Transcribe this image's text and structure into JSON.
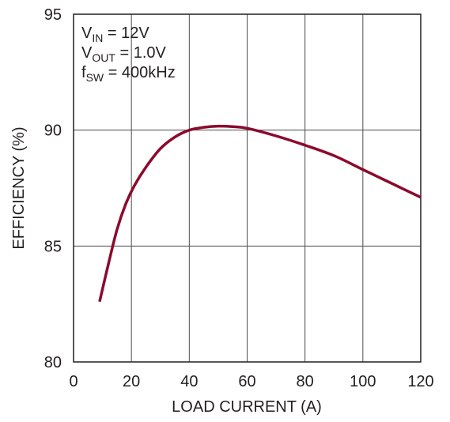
{
  "chart_data": {
    "type": "line",
    "title": "",
    "xlabel": "LOAD CURRENT (A)",
    "ylabel": "EFFICIENCY (%)",
    "xlim": [
      0,
      120
    ],
    "ylim": [
      80,
      95
    ],
    "xticks": [
      0,
      20,
      40,
      60,
      80,
      100,
      120
    ],
    "yticks": [
      80,
      85,
      90,
      95
    ],
    "xtick_labels": [
      "0",
      "20",
      "40",
      "60",
      "80",
      "100",
      "120"
    ],
    "ytick_labels": [
      "80",
      "85",
      "90",
      "95"
    ],
    "grid": true,
    "line_color": "#8b0a2e",
    "annotations": [
      {
        "main": "V",
        "sub": "IN",
        "rest": " = 12V"
      },
      {
        "main": "V",
        "sub": "OUT",
        "rest": " = 1.0V"
      },
      {
        "main": "f",
        "sub": "SW",
        "rest": " = 400kHz"
      }
    ],
    "series": [
      {
        "x": [
          9,
          12,
          15,
          18,
          21,
          25,
          30,
          35,
          40,
          45,
          50,
          55,
          60,
          70,
          80,
          90,
          100,
          110,
          120
        ],
        "y": [
          82.6,
          84.2,
          85.7,
          86.8,
          87.6,
          88.4,
          89.2,
          89.7,
          90.0,
          90.12,
          90.17,
          90.15,
          90.08,
          89.75,
          89.35,
          88.9,
          88.3,
          87.7,
          87.1
        ]
      }
    ]
  }
}
